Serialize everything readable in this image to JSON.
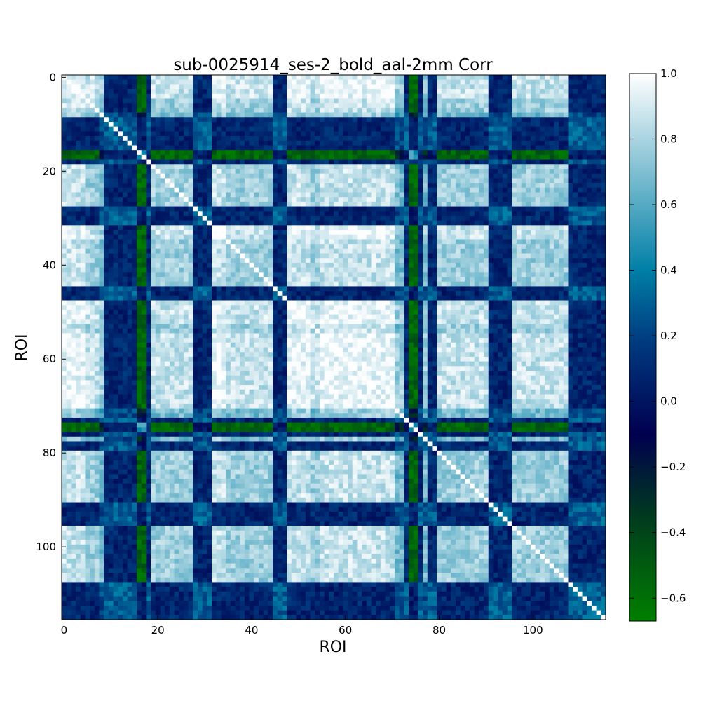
{
  "chart_data": {
    "type": "heatmap",
    "title": "sub-0025914_ses-2_bold_aal-2mm Corr",
    "xlabel": "ROI",
    "ylabel": "ROI",
    "n_rois": 116,
    "x_ticks": [
      0,
      20,
      40,
      60,
      80,
      100
    ],
    "y_ticks": [
      0,
      20,
      40,
      60,
      80,
      100
    ],
    "colorbar": {
      "min": -0.67,
      "max": 1.0,
      "ticks": [
        1.0,
        0.8,
        0.6,
        0.4,
        0.2,
        0.0,
        -0.2,
        -0.4,
        -0.6
      ],
      "tick_labels": [
        "1.0",
        "0.8",
        "0.6",
        "0.4",
        "0.2",
        "0.0",
        "−0.2",
        "−0.4",
        "−0.6"
      ],
      "colors": [
        {
          "value": -0.67,
          "color": "#007f00"
        },
        {
          "value": -0.35,
          "color": "#003a1e"
        },
        {
          "value": -0.1,
          "color": "#00004f"
        },
        {
          "value": 0.18,
          "color": "#003a7f"
        },
        {
          "value": 0.4,
          "color": "#007fa6"
        },
        {
          "value": 0.7,
          "color": "#7fbfd2"
        },
        {
          "value": 1.0,
          "color": "#ffffff"
        }
      ]
    },
    "roi_groups": {
      "core_high": [
        [
          0,
          7
        ],
        [
          19,
          27
        ],
        [
          32,
          44
        ],
        [
          48,
          70
        ],
        [
          80,
          90
        ],
        [
          96,
          107
        ]
      ],
      "very_high": [
        [
          55,
          70
        ],
        [
          0,
          4
        ],
        [
          32,
          34
        ],
        [
          48,
          52
        ]
      ],
      "low_rows": [
        [
          10,
          15
        ],
        [
          16,
          17
        ],
        [
          28,
          31
        ],
        [
          45,
          47
        ],
        [
          73,
          76
        ],
        [
          78,
          79
        ],
        [
          91,
          95
        ],
        [
          108,
          115
        ]
      ],
      "negative_rows": [
        [
          16,
          17
        ],
        [
          74,
          75
        ]
      ],
      "low_cols": [
        [
          9,
          14
        ],
        [
          17,
          18
        ],
        [
          29,
          31
        ],
        [
          46,
          47
        ],
        [
          73,
          76
        ],
        [
          108,
          115
        ]
      ],
      "negative_cols": [
        [
          17,
          18
        ],
        [
          74,
          75
        ]
      ]
    },
    "grid": false,
    "legend": "none"
  }
}
